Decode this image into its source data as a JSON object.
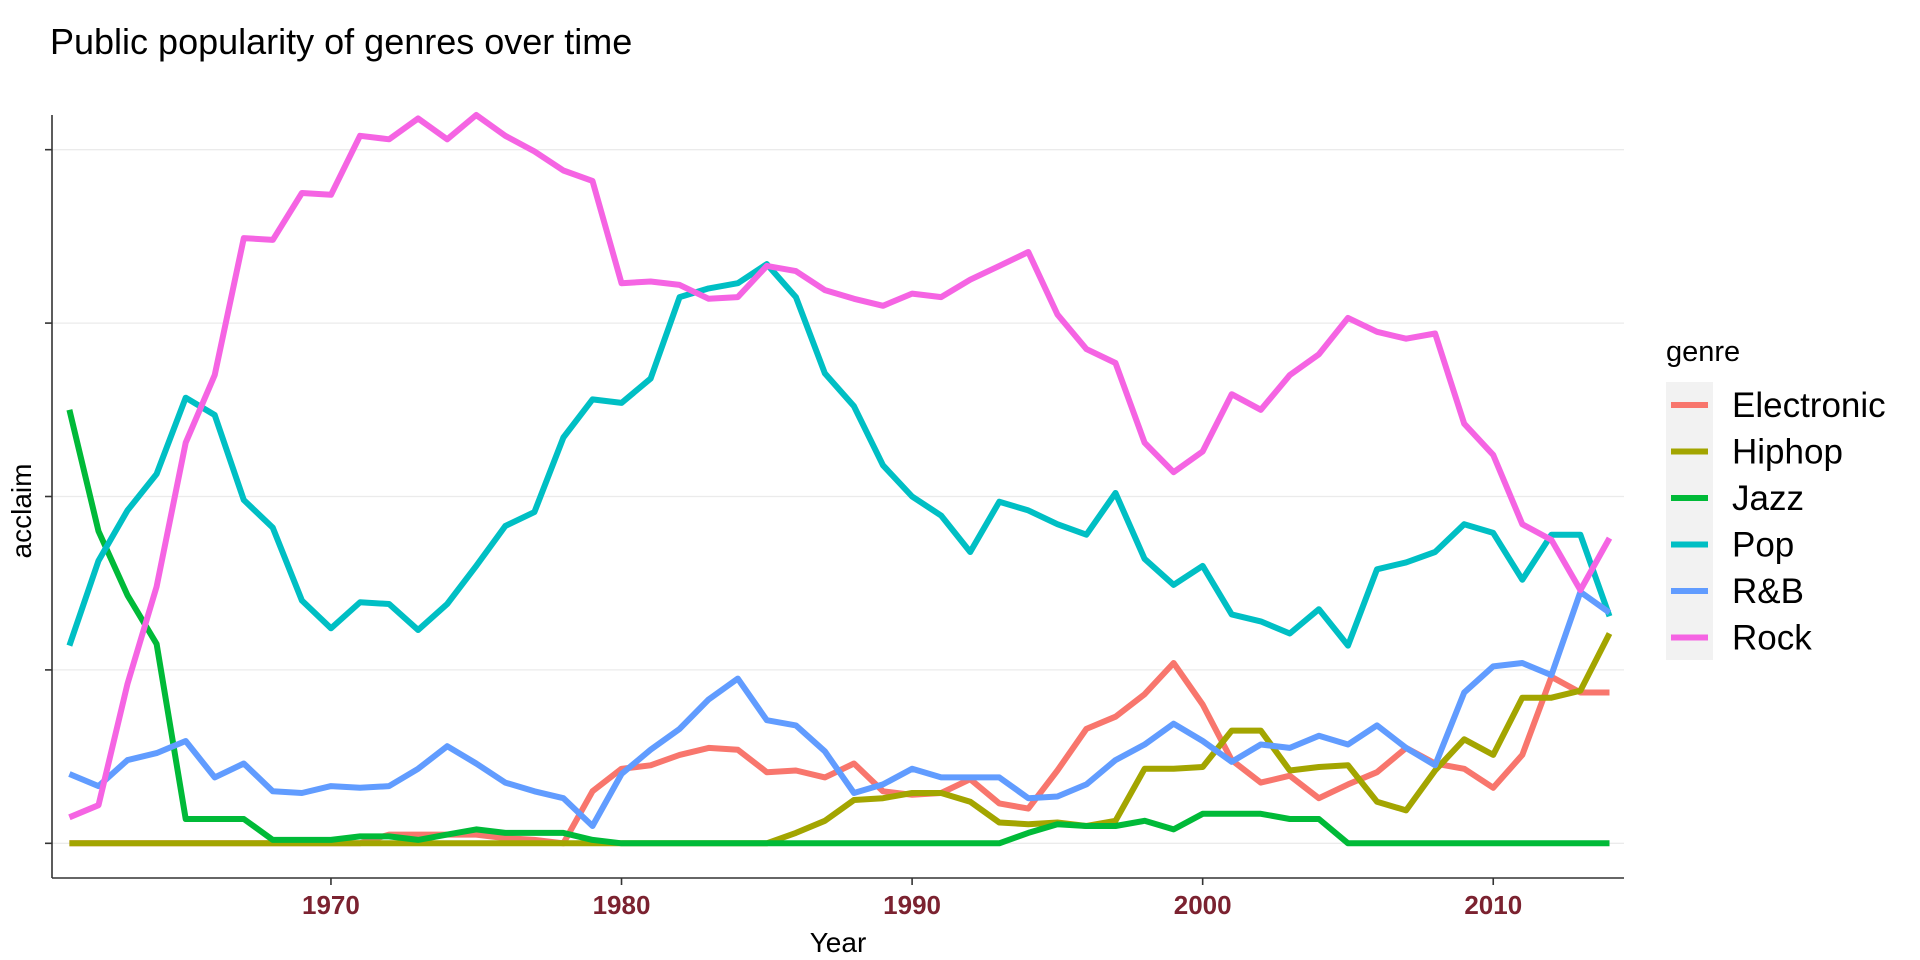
{
  "chart_data": {
    "type": "line",
    "title": "Public popularity of genres over time",
    "xlabel": "Year",
    "ylabel": "acclaim",
    "xlim": [
      1960.4,
      2014.5
    ],
    "ylim": [
      -0.2,
      4.2
    ],
    "x_ticks": [
      1970,
      1980,
      1990,
      2000,
      2010
    ],
    "y_ticks": [
      0,
      1,
      2,
      3,
      4
    ],
    "y_tick_labels_visible": false,
    "grid": "horizontal",
    "legend": {
      "title": "genre",
      "placement": "right"
    },
    "x": [
      1961,
      1962,
      1963,
      1964,
      1965,
      1966,
      1967,
      1968,
      1969,
      1970,
      1971,
      1972,
      1973,
      1974,
      1975,
      1976,
      1977,
      1978,
      1979,
      1980,
      1981,
      1982,
      1983,
      1984,
      1985,
      1986,
      1987,
      1988,
      1989,
      1990,
      1991,
      1992,
      1993,
      1994,
      1995,
      1996,
      1997,
      1998,
      1999,
      2000,
      2001,
      2002,
      2003,
      2004,
      2005,
      2006,
      2007,
      2008,
      2009,
      2010,
      2011,
      2012,
      2013,
      2014
    ],
    "series": [
      {
        "name": "Electronic",
        "color": "#F8766D",
        "values": [
          0,
          0,
          0,
          0,
          0,
          0,
          0,
          0,
          0,
          0,
          0,
          0.05,
          0.05,
          0.05,
          0.05,
          0.03,
          0.02,
          0,
          0.3,
          0.43,
          0.45,
          0.51,
          0.55,
          0.54,
          0.41,
          0.42,
          0.38,
          0.46,
          0.3,
          0.28,
          0.29,
          0.37,
          0.23,
          0.2,
          0.42,
          0.66,
          0.73,
          0.86,
          1.04,
          0.8,
          0.48,
          0.35,
          0.39,
          0.26,
          0.34,
          0.41,
          0.55,
          0.46,
          0.43,
          0.32,
          0.51,
          0.96,
          0.87,
          0.87
        ]
      },
      {
        "name": "Hiphop",
        "color": "#A3A500",
        "values": [
          0,
          0,
          0,
          0,
          0,
          0,
          0,
          0,
          0,
          0,
          0,
          0,
          0,
          0,
          0,
          0,
          0,
          0,
          0,
          0,
          0,
          0,
          0,
          0,
          0,
          0.06,
          0.13,
          0.25,
          0.26,
          0.29,
          0.29,
          0.24,
          0.12,
          0.11,
          0.12,
          0.1,
          0.13,
          0.43,
          0.43,
          0.44,
          0.65,
          0.65,
          0.42,
          0.44,
          0.45,
          0.24,
          0.19,
          0.42,
          0.6,
          0.51,
          0.84,
          0.84,
          0.88,
          1.21
        ]
      },
      {
        "name": "Jazz",
        "color": "#00BA38",
        "values": [
          2.5,
          1.8,
          1.43,
          1.15,
          0.14,
          0.14,
          0.14,
          0.02,
          0.02,
          0.02,
          0.04,
          0.04,
          0.02,
          0.05,
          0.08,
          0.06,
          0.06,
          0.06,
          0.02,
          0,
          0,
          0,
          0,
          0,
          0,
          0,
          0,
          0,
          0,
          0,
          0,
          0,
          0,
          0.06,
          0.11,
          0.1,
          0.1,
          0.13,
          0.08,
          0.17,
          0.17,
          0.17,
          0.14,
          0.14,
          0,
          0,
          0,
          0,
          0,
          0,
          0,
          0,
          0,
          0
        ]
      },
      {
        "name": "Pop",
        "color": "#00BFC4",
        "values": [
          1.14,
          1.63,
          1.92,
          2.13,
          2.57,
          2.47,
          1.98,
          1.82,
          1.4,
          1.24,
          1.39,
          1.38,
          1.23,
          1.38,
          1.6,
          1.83,
          1.91,
          2.34,
          2.56,
          2.54,
          2.68,
          3.15,
          3.2,
          3.23,
          3.34,
          3.15,
          2.71,
          2.52,
          2.18,
          2.0,
          1.89,
          1.68,
          1.97,
          1.92,
          1.84,
          1.78,
          2.02,
          1.64,
          1.49,
          1.6,
          1.32,
          1.28,
          1.21,
          1.35,
          1.14,
          1.58,
          1.62,
          1.68,
          1.84,
          1.79,
          1.52,
          1.78,
          1.78,
          1.31
        ]
      },
      {
        "name": "R&B",
        "color": "#619CFF",
        "values": [
          0.4,
          0.33,
          0.48,
          0.52,
          0.59,
          0.38,
          0.46,
          0.3,
          0.29,
          0.33,
          0.32,
          0.33,
          0.43,
          0.56,
          0.46,
          0.35,
          0.3,
          0.26,
          0.1,
          0.4,
          0.54,
          0.66,
          0.83,
          0.95,
          0.71,
          0.68,
          0.53,
          0.29,
          0.34,
          0.43,
          0.38,
          0.38,
          0.38,
          0.26,
          0.27,
          0.34,
          0.48,
          0.57,
          0.69,
          0.59,
          0.47,
          0.57,
          0.55,
          0.62,
          0.57,
          0.68,
          0.55,
          0.45,
          0.87,
          1.02,
          1.04,
          0.97,
          1.45,
          1.33
        ]
      },
      {
        "name": "Rock",
        "color": "#F564E3",
        "values": [
          0.15,
          0.22,
          0.92,
          1.48,
          2.31,
          2.7,
          3.49,
          3.48,
          3.75,
          3.74,
          4.08,
          4.06,
          4.18,
          4.06,
          4.2,
          4.08,
          3.99,
          3.88,
          3.82,
          3.23,
          3.24,
          3.22,
          3.14,
          3.15,
          3.33,
          3.3,
          3.19,
          3.14,
          3.1,
          3.17,
          3.15,
          3.25,
          3.33,
          3.41,
          3.05,
          2.85,
          2.77,
          2.31,
          2.14,
          2.26,
          2.59,
          2.5,
          2.7,
          2.82,
          3.03,
          2.95,
          2.91,
          2.94,
          2.42,
          2.24,
          1.84,
          1.75,
          1.46,
          1.76
        ]
      }
    ]
  }
}
